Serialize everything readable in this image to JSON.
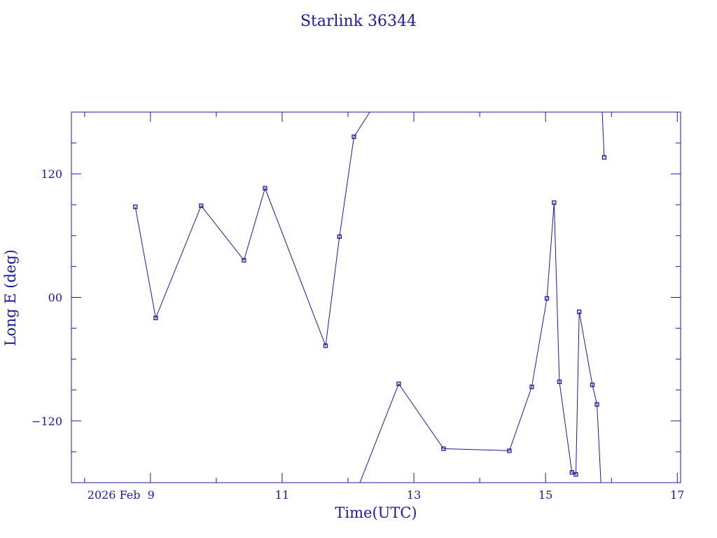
{
  "chart_data": {
    "type": "line",
    "title": "Starlink 36344",
    "xlabel": "Time(UTC)",
    "ylabel": "Long E (deg)",
    "x_unit": "days of February 2026 (UTC)",
    "xlim": [
      7.8,
      17.05
    ],
    "ylim": [
      -180,
      180
    ],
    "x_ticks": [
      9,
      11,
      13,
      15,
      17
    ],
    "x_tick_labels": [
      "2026 Feb  9",
      "11",
      "13",
      "15",
      "17"
    ],
    "y_ticks": [
      -120,
      0,
      120
    ],
    "y_tick_labels": [
      "−120",
      "00",
      "120"
    ],
    "grid": false,
    "legend": "none",
    "color": "#1a1aa0",
    "series": [
      {
        "segments": [
          [
            [
              8.77,
              88
            ],
            [
              9.08,
              -20
            ],
            [
              9.77,
              89
            ],
            [
              10.42,
              36
            ],
            [
              10.74,
              106
            ],
            [
              11.66,
              -47
            ],
            [
              11.87,
              59
            ],
            [
              12.09,
              156
            ],
            [
              12.33,
              180
            ]
          ],
          [
            [
              12.18,
              -180
            ],
            [
              12.77,
              -84
            ],
            [
              13.45,
              -147
            ],
            [
              14.45,
              -149
            ],
            [
              14.79,
              -87
            ],
            [
              15.02,
              -1
            ],
            [
              15.13,
              92
            ],
            [
              15.21,
              -82
            ],
            [
              15.4,
              -170
            ],
            [
              15.46,
              -172
            ],
            [
              15.51,
              -14
            ],
            [
              15.71,
              -85
            ],
            [
              15.78,
              -104
            ],
            [
              15.84,
              -180
            ]
          ],
          [
            [
              15.86,
              180
            ],
            [
              15.89,
              136
            ]
          ]
        ],
        "markers": [
          [
            8.77,
            88
          ],
          [
            9.08,
            -20
          ],
          [
            9.77,
            89
          ],
          [
            10.42,
            36
          ],
          [
            10.74,
            106
          ],
          [
            11.66,
            -47
          ],
          [
            11.87,
            59
          ],
          [
            12.09,
            156
          ],
          [
            12.77,
            -84
          ],
          [
            13.45,
            -147
          ],
          [
            14.45,
            -149
          ],
          [
            14.79,
            -87
          ],
          [
            15.02,
            -1
          ],
          [
            15.13,
            92
          ],
          [
            15.21,
            -82
          ],
          [
            15.4,
            -170
          ],
          [
            15.46,
            -172
          ],
          [
            15.51,
            -14
          ],
          [
            15.71,
            -85
          ],
          [
            15.78,
            -104
          ],
          [
            15.89,
            136
          ]
        ]
      }
    ]
  }
}
